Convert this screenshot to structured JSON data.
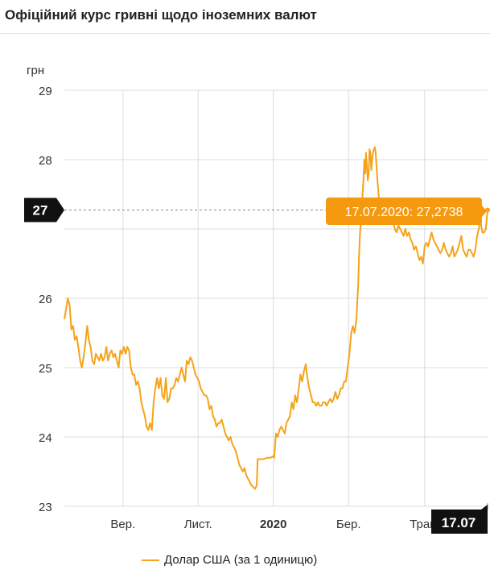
{
  "title": "Офіційний курс гривні щодо іноземних валют",
  "chart_data": {
    "type": "line",
    "ylabel": "грн",
    "ylim": [
      23,
      29
    ],
    "y_ticks": [
      "23",
      "24",
      "25",
      "26",
      "27",
      "28",
      "29"
    ],
    "x_ticks": [
      {
        "label": "Вер.",
        "t": 67,
        "bold": false
      },
      {
        "label": "Лист.",
        "t": 153,
        "bold": false
      },
      {
        "label": "2020",
        "t": 239,
        "bold": true
      },
      {
        "label": "Бер.",
        "t": 325,
        "bold": false
      },
      {
        "label": "Трав.",
        "t": 412,
        "bold": false
      }
    ],
    "series": [
      {
        "name": "Долар США (за 1 одиницю)",
        "color": "#f5a31a",
        "points": [
          [
            0,
            25.7
          ],
          [
            2,
            25.85
          ],
          [
            4,
            26.0
          ],
          [
            6,
            25.9
          ],
          [
            8,
            25.55
          ],
          [
            10,
            25.6
          ],
          [
            12,
            25.4
          ],
          [
            14,
            25.45
          ],
          [
            16,
            25.3
          ],
          [
            18,
            25.1
          ],
          [
            20,
            25.0
          ],
          [
            22,
            25.15
          ],
          [
            24,
            25.35
          ],
          [
            26,
            25.6
          ],
          [
            28,
            25.4
          ],
          [
            30,
            25.3
          ],
          [
            32,
            25.1
          ],
          [
            34,
            25.05
          ],
          [
            36,
            25.2
          ],
          [
            38,
            25.15
          ],
          [
            40,
            25.1
          ],
          [
            42,
            25.2
          ],
          [
            44,
            25.1
          ],
          [
            46,
            25.15
          ],
          [
            48,
            25.3
          ],
          [
            50,
            25.1
          ],
          [
            52,
            25.2
          ],
          [
            54,
            25.25
          ],
          [
            56,
            25.15
          ],
          [
            58,
            25.2
          ],
          [
            60,
            25.1
          ],
          [
            62,
            25.0
          ],
          [
            64,
            25.25
          ],
          [
            66,
            25.2
          ],
          [
            68,
            25.3
          ],
          [
            70,
            25.2
          ],
          [
            72,
            25.3
          ],
          [
            74,
            25.25
          ],
          [
            76,
            25.0
          ],
          [
            78,
            24.9
          ],
          [
            80,
            24.9
          ],
          [
            82,
            24.75
          ],
          [
            84,
            24.8
          ],
          [
            86,
            24.7
          ],
          [
            88,
            24.5
          ],
          [
            90,
            24.4
          ],
          [
            92,
            24.3
          ],
          [
            94,
            24.15
          ],
          [
            96,
            24.1
          ],
          [
            98,
            24.2
          ],
          [
            100,
            24.1
          ],
          [
            102,
            24.5
          ],
          [
            104,
            24.7
          ],
          [
            106,
            24.85
          ],
          [
            108,
            24.7
          ],
          [
            110,
            24.85
          ],
          [
            112,
            24.6
          ],
          [
            114,
            24.55
          ],
          [
            116,
            24.85
          ],
          [
            118,
            24.5
          ],
          [
            120,
            24.55
          ],
          [
            122,
            24.7
          ],
          [
            124,
            24.7
          ],
          [
            126,
            24.75
          ],
          [
            128,
            24.85
          ],
          [
            130,
            24.8
          ],
          [
            132,
            24.9
          ],
          [
            134,
            25.0
          ],
          [
            136,
            24.9
          ],
          [
            138,
            24.8
          ],
          [
            140,
            25.1
          ],
          [
            142,
            25.05
          ],
          [
            144,
            25.15
          ],
          [
            146,
            25.1
          ],
          [
            148,
            25.0
          ],
          [
            150,
            24.9
          ],
          [
            152,
            24.85
          ],
          [
            154,
            24.8
          ],
          [
            156,
            24.7
          ],
          [
            158,
            24.65
          ],
          [
            160,
            24.6
          ],
          [
            162,
            24.6
          ],
          [
            164,
            24.55
          ],
          [
            166,
            24.4
          ],
          [
            168,
            24.45
          ],
          [
            170,
            24.3
          ],
          [
            172,
            24.25
          ],
          [
            174,
            24.15
          ],
          [
            176,
            24.2
          ],
          [
            178,
            24.2
          ],
          [
            180,
            24.25
          ],
          [
            182,
            24.15
          ],
          [
            184,
            24.05
          ],
          [
            186,
            24.0
          ],
          [
            188,
            23.95
          ],
          [
            190,
            24.0
          ],
          [
            192,
            23.9
          ],
          [
            194,
            23.85
          ],
          [
            196,
            23.8
          ],
          [
            198,
            23.7
          ],
          [
            200,
            23.6
          ],
          [
            202,
            23.55
          ],
          [
            204,
            23.5
          ],
          [
            206,
            23.55
          ],
          [
            208,
            23.45
          ],
          [
            210,
            23.4
          ],
          [
            212,
            23.35
          ],
          [
            214,
            23.3
          ],
          [
            216,
            23.28
          ],
          [
            218,
            23.25
          ],
          [
            220,
            23.3
          ],
          [
            221,
            23.68
          ],
          [
            224,
            23.68
          ],
          [
            228,
            23.68
          ],
          [
            232,
            23.7
          ],
          [
            236,
            23.7
          ],
          [
            238,
            23.72
          ],
          [
            240,
            23.7
          ],
          [
            242,
            24.05
          ],
          [
            244,
            24.0
          ],
          [
            246,
            24.1
          ],
          [
            248,
            24.15
          ],
          [
            250,
            24.1
          ],
          [
            252,
            24.05
          ],
          [
            254,
            24.2
          ],
          [
            256,
            24.25
          ],
          [
            258,
            24.3
          ],
          [
            260,
            24.5
          ],
          [
            262,
            24.4
          ],
          [
            264,
            24.6
          ],
          [
            266,
            24.5
          ],
          [
            268,
            24.7
          ],
          [
            270,
            24.9
          ],
          [
            272,
            24.8
          ],
          [
            274,
            24.95
          ],
          [
            276,
            25.05
          ],
          [
            278,
            24.85
          ],
          [
            280,
            24.7
          ],
          [
            282,
            24.6
          ],
          [
            284,
            24.5
          ],
          [
            286,
            24.5
          ],
          [
            288,
            24.45
          ],
          [
            290,
            24.5
          ],
          [
            292,
            24.45
          ],
          [
            294,
            24.45
          ],
          [
            296,
            24.5
          ],
          [
            298,
            24.5
          ],
          [
            300,
            24.45
          ],
          [
            302,
            24.5
          ],
          [
            304,
            24.55
          ],
          [
            306,
            24.5
          ],
          [
            308,
            24.55
          ],
          [
            310,
            24.65
          ],
          [
            312,
            24.55
          ],
          [
            314,
            24.6
          ],
          [
            316,
            24.7
          ],
          [
            318,
            24.7
          ],
          [
            320,
            24.8
          ],
          [
            322,
            24.8
          ],
          [
            324,
            25.0
          ],
          [
            326,
            25.2
          ],
          [
            328,
            25.5
          ],
          [
            330,
            25.6
          ],
          [
            332,
            25.5
          ],
          [
            334,
            25.7
          ],
          [
            336,
            26.2
          ],
          [
            337,
            26.6
          ],
          [
            338,
            26.9
          ],
          [
            339,
            27.1
          ],
          [
            340,
            27.3
          ],
          [
            341,
            27.5
          ],
          [
            342,
            27.7
          ],
          [
            343,
            28.0
          ],
          [
            344,
            27.8
          ],
          [
            345,
            28.1
          ],
          [
            346,
            27.9
          ],
          [
            347,
            27.7
          ],
          [
            348,
            27.8
          ],
          [
            349,
            28.15
          ],
          [
            350,
            28.1
          ],
          [
            351,
            27.85
          ],
          [
            352,
            28.0
          ],
          [
            353,
            28.1
          ],
          [
            354,
            28.15
          ],
          [
            355,
            28.18
          ],
          [
            356,
            28.1
          ],
          [
            357,
            27.9
          ],
          [
            358,
            27.7
          ],
          [
            359,
            27.55
          ],
          [
            360,
            27.4
          ],
          [
            361,
            27.3
          ],
          [
            362,
            27.25
          ],
          [
            364,
            27.2
          ],
          [
            366,
            27.3
          ],
          [
            368,
            27.25
          ],
          [
            370,
            27.1
          ],
          [
            372,
            27.2
          ],
          [
            374,
            27.15
          ],
          [
            376,
            27.1
          ],
          [
            378,
            27.0
          ],
          [
            380,
            26.95
          ],
          [
            382,
            27.05
          ],
          [
            384,
            27.0
          ],
          [
            386,
            26.95
          ],
          [
            388,
            26.9
          ],
          [
            390,
            27.0
          ],
          [
            392,
            26.9
          ],
          [
            394,
            26.95
          ],
          [
            396,
            26.85
          ],
          [
            398,
            26.8
          ],
          [
            400,
            26.7
          ],
          [
            402,
            26.75
          ],
          [
            404,
            26.65
          ],
          [
            406,
            26.55
          ],
          [
            408,
            26.6
          ],
          [
            410,
            26.5
          ],
          [
            412,
            26.75
          ],
          [
            414,
            26.8
          ],
          [
            416,
            26.75
          ],
          [
            418,
            26.85
          ],
          [
            420,
            26.95
          ],
          [
            422,
            26.85
          ],
          [
            424,
            26.8
          ],
          [
            426,
            26.75
          ],
          [
            428,
            26.7
          ],
          [
            430,
            26.65
          ],
          [
            432,
            26.7
          ],
          [
            434,
            26.8
          ],
          [
            436,
            26.7
          ],
          [
            438,
            26.65
          ],
          [
            440,
            26.6
          ],
          [
            442,
            26.65
          ],
          [
            444,
            26.75
          ],
          [
            446,
            26.6
          ],
          [
            448,
            26.65
          ],
          [
            450,
            26.7
          ],
          [
            452,
            26.8
          ],
          [
            454,
            26.9
          ],
          [
            456,
            26.7
          ],
          [
            458,
            26.65
          ],
          [
            460,
            26.6
          ],
          [
            462,
            26.7
          ],
          [
            464,
            26.7
          ],
          [
            466,
            26.65
          ],
          [
            468,
            26.6
          ],
          [
            470,
            26.7
          ],
          [
            472,
            26.9
          ],
          [
            474,
            27.0
          ],
          [
            475,
            27.1
          ],
          [
            476,
            27.1
          ],
          [
            478,
            26.95
          ],
          [
            480,
            26.95
          ],
          [
            482,
            27.0
          ],
          [
            484,
            27.27
          ]
        ]
      }
    ],
    "highlight": {
      "t": 484,
      "value": 27.2738,
      "value_label": "27",
      "tooltip": "17.07.2020: 27,2738",
      "x_label": "17.07"
    },
    "legend": {
      "label": "Долар США (за 1 одиницю)",
      "placement": "bottom"
    },
    "grid": true
  }
}
